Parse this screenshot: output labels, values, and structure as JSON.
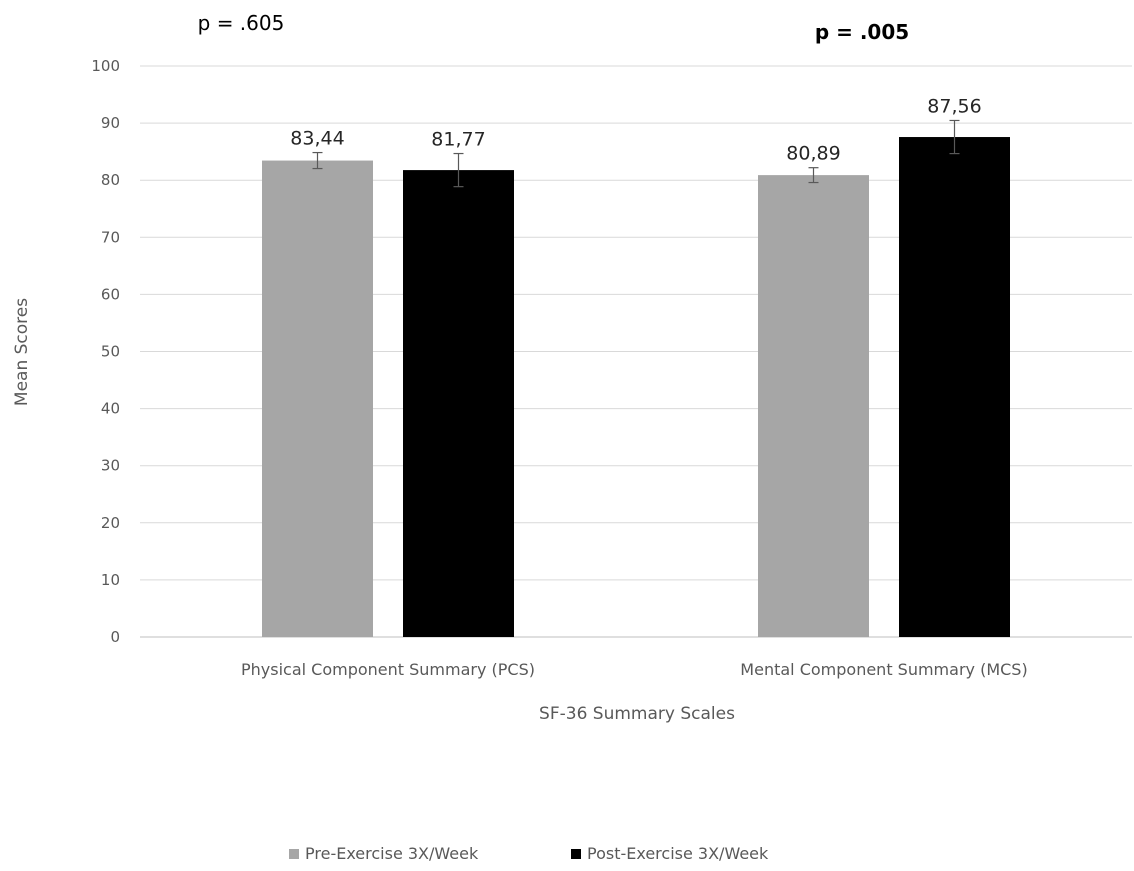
{
  "chart_data": {
    "type": "bar",
    "categories": [
      "Physical Component Summary (PCS)",
      "Mental Component Summary (MCS)"
    ],
    "series": [
      {
        "name": "Pre-Exercise  3X/Week",
        "values": [
          83.44,
          80.89
        ],
        "labels": [
          "83,44",
          "80,89"
        ],
        "error": [
          1.4,
          1.3
        ],
        "color": "#a6a6a6"
      },
      {
        "name": "Post-Exercise 3X/Week",
        "values": [
          81.77,
          87.56
        ],
        "labels": [
          "81,77",
          "87,56"
        ],
        "error": [
          2.9,
          2.9
        ],
        "color": "#000000"
      }
    ],
    "annotations": [
      {
        "text": "p = .605",
        "category": 0,
        "bold": false
      },
      {
        "text": "p = .005",
        "category": 1,
        "bold": true
      }
    ],
    "xlabel": "SF-36 Summary Scales",
    "ylabel": "Mean Scores",
    "ylim": [
      0,
      100
    ],
    "yticks": [
      0,
      10,
      20,
      30,
      40,
      50,
      60,
      70,
      80,
      90,
      100
    ],
    "grid": true,
    "legend": "bottom"
  }
}
